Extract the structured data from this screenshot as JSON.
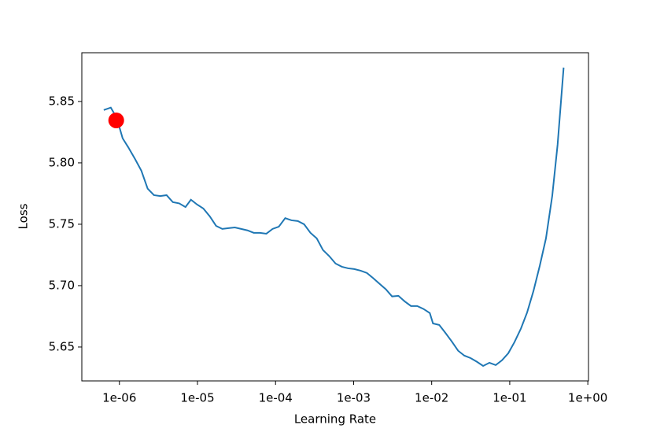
{
  "chart_data": {
    "type": "line",
    "x_label": "Learning Rate",
    "y_label": "Loss",
    "xscale": "log",
    "color": "#1f77b4",
    "x": [
      6.3e-07,
      7.75e-07,
      8.9e-07,
      9.8e-07,
      1.1e-06,
      1.29e-06,
      1.59e-06,
      1.91e-06,
      2.3e-06,
      2.77e-06,
      3.34e-06,
      4.02e-06,
      4.84e-06,
      5.83e-06,
      7.02e-06,
      8.24e-06,
      9.92e-06,
      1.19e-05,
      1.44e-05,
      1.73e-05,
      2.08e-05,
      2.5e-05,
      3.01e-05,
      3.63e-05,
      4.37e-05,
      5.26e-05,
      6.33e-05,
      7.62e-05,
      9.17e-05,
      0.00011,
      0.000133,
      0.00016,
      0.000193,
      0.000232,
      0.00028,
      0.000337,
      0.000405,
      0.000488,
      0.000587,
      0.000707,
      0.00085,
      0.00102,
      0.00123,
      0.00148,
      0.00179,
      0.00215,
      0.00259,
      0.00311,
      0.00375,
      0.00451,
      0.00543,
      0.00653,
      0.00786,
      0.00946,
      0.0104,
      0.0125,
      0.015,
      0.0181,
      0.0218,
      0.0262,
      0.0315,
      0.0379,
      0.0456,
      0.0549,
      0.0661,
      0.0795,
      0.0957,
      0.115,
      0.139,
      0.167,
      0.201,
      0.242,
      0.291,
      0.35,
      0.41,
      0.49
    ],
    "values": [
      5.843,
      5.845,
      5.8385,
      5.831,
      5.82,
      5.813,
      5.803,
      5.7936,
      5.779,
      5.7737,
      5.773,
      5.7737,
      5.768,
      5.767,
      5.764,
      5.77,
      5.766,
      5.7628,
      5.7564,
      5.7487,
      5.7462,
      5.7468,
      5.7474,
      5.7462,
      5.745,
      5.743,
      5.743,
      5.7423,
      5.7462,
      5.748,
      5.755,
      5.7532,
      5.7526,
      5.75,
      5.743,
      5.7385,
      5.729,
      5.724,
      5.718,
      5.7154,
      5.7141,
      5.7135,
      5.7122,
      5.7103,
      5.706,
      5.7015,
      5.697,
      5.6912,
      5.6917,
      5.6872,
      5.6834,
      5.6834,
      5.681,
      5.6777,
      5.6692,
      5.668,
      5.6615,
      5.6545,
      5.647,
      5.643,
      5.641,
      5.638,
      5.6346,
      5.6372,
      5.6353,
      5.6392,
      5.6449,
      5.654,
      5.665,
      5.6782,
      5.6955,
      5.716,
      5.7385,
      5.773,
      5.8147,
      5.8776
    ],
    "marker": {
      "x": 9.1e-07,
      "y": 5.8346,
      "color": "#ff0000"
    },
    "xlim": [
      3.3e-07,
      1.02
    ],
    "ylim": [
      5.6224,
      5.8897
    ],
    "xticks": [
      {
        "value": 1e-06,
        "label": "1e-06"
      },
      {
        "value": 1e-05,
        "label": "1e-05"
      },
      {
        "value": 0.0001,
        "label": "1e-04"
      },
      {
        "value": 0.001,
        "label": "1e-03"
      },
      {
        "value": 0.01,
        "label": "1e-02"
      },
      {
        "value": 0.1,
        "label": "1e-01"
      },
      {
        "value": 1,
        "label": "1e+00"
      }
    ],
    "yticks": [
      5.65,
      {
        "value": 5.7,
        "label": "5.70"
      },
      5.75,
      {
        "value": 5.8,
        "label": "5.80"
      },
      5.85
    ]
  }
}
